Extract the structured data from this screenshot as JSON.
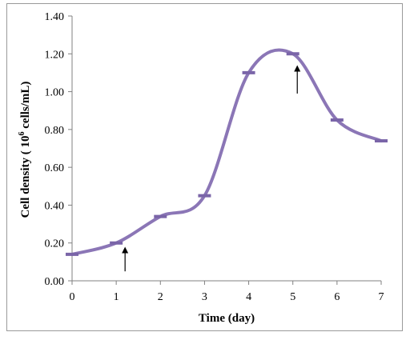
{
  "chart_data": {
    "type": "line",
    "title": "",
    "xlabel": "Time (day)",
    "ylabel_main": "Cell density ( 10",
    "ylabel_sup": "6",
    "ylabel_tail": " cells/mL)",
    "xlim": [
      0,
      7
    ],
    "ylim": [
      0,
      1.4
    ],
    "x_ticks": [
      "0",
      "1",
      "2",
      "3",
      "4",
      "5",
      "6",
      "7"
    ],
    "y_ticks": [
      "0.00",
      "0.20",
      "0.40",
      "0.60",
      "0.80",
      "1.00",
      "1.20",
      "1.40"
    ],
    "grid": false,
    "legend": "none",
    "series": [
      {
        "color": "#8b76b6",
        "x": [
          0,
          1,
          2,
          3,
          4,
          5,
          6,
          7
        ],
        "y": [
          0.14,
          0.2,
          0.34,
          0.45,
          1.1,
          1.2,
          0.85,
          0.74
        ]
      }
    ],
    "annotations": [
      {
        "type": "arrow",
        "x": 1.2,
        "y_tip": 0.18,
        "y_tail": 0.05
      },
      {
        "type": "arrow",
        "x": 5.1,
        "y_tip": 1.14,
        "y_tail": 0.99
      }
    ]
  }
}
